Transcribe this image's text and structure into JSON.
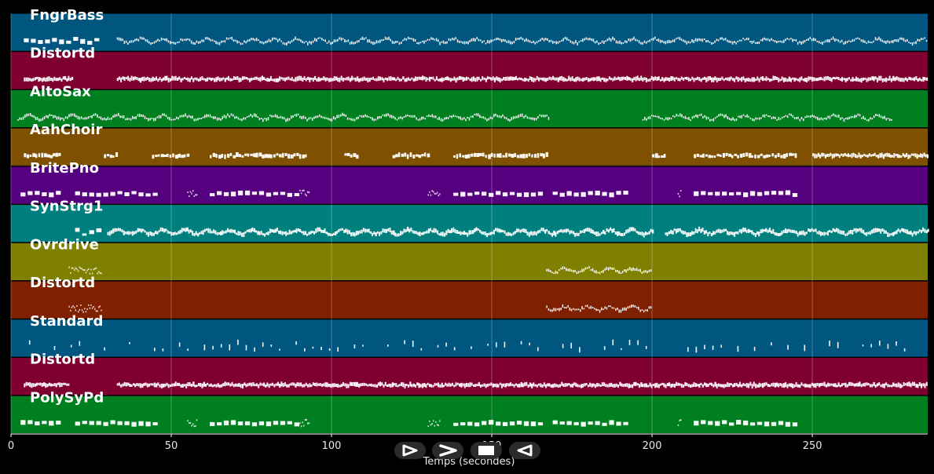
{
  "chart_data": {
    "type": "piano-roll",
    "title": "",
    "xlabel": "Temps (secondes)",
    "ylabel": "",
    "xlim": [
      0,
      286
    ],
    "xticks": [
      0,
      50,
      100,
      150,
      200,
      250
    ],
    "grid": true,
    "tracks": [
      {
        "name": "FngrBass",
        "color": "#00567f",
        "segments": [
          [
            4,
            27,
            "sparse"
          ],
          [
            33,
            286,
            "dense"
          ]
        ],
        "style": "thin",
        "motion": "wave"
      },
      {
        "name": "Distortd",
        "color": "#7f0030",
        "segments": [
          [
            4,
            19,
            "dense"
          ],
          [
            33,
            286,
            "dense"
          ]
        ],
        "style": "thick",
        "motion": "flat"
      },
      {
        "name": "AltoSax",
        "color": "#007f20",
        "segments": [
          [
            2,
            168,
            "dense"
          ],
          [
            197,
            275,
            "dense"
          ]
        ],
        "style": "thin",
        "motion": "wave"
      },
      {
        "name": "AahChoir",
        "color": "#7f5000",
        "segments": [
          [
            4,
            15,
            "medium"
          ],
          [
            29,
            33,
            "medium"
          ],
          [
            44,
            55,
            "medium"
          ],
          [
            62,
            92,
            "medium"
          ],
          [
            104,
            108,
            "medium"
          ],
          [
            119,
            130,
            "medium"
          ],
          [
            138,
            167,
            "medium"
          ],
          [
            200,
            204,
            "medium"
          ],
          [
            213,
            245,
            "medium"
          ],
          [
            250,
            286,
            "dense"
          ]
        ],
        "style": "thick",
        "motion": "flat"
      },
      {
        "name": "BritePno",
        "color": "#55007f",
        "segments": [
          [
            3,
            15,
            "sparse"
          ],
          [
            20,
            46,
            "sparse"
          ],
          [
            55,
            58,
            "cluster"
          ],
          [
            62,
            90,
            "sparse"
          ],
          [
            90,
            93,
            "cluster"
          ],
          [
            130,
            134,
            "cluster"
          ],
          [
            138,
            166,
            "sparse"
          ],
          [
            169,
            193,
            "sparse"
          ],
          [
            208,
            209,
            "cluster"
          ],
          [
            213,
            244,
            "sparse"
          ]
        ],
        "style": "thin",
        "motion": "flat"
      },
      {
        "name": "SynStrg1",
        "color": "#007f7f",
        "segments": [
          [
            20,
            28,
            "sparse"
          ],
          [
            30,
            200,
            "dense"
          ],
          [
            204,
            286,
            "dense"
          ]
        ],
        "style": "thick",
        "motion": "wave"
      },
      {
        "name": "Ovrdrive",
        "color": "#7f7f00",
        "segments": [
          [
            18,
            28,
            "cluster"
          ],
          [
            167,
            200,
            "dense"
          ]
        ],
        "style": "thin",
        "motion": "wave"
      },
      {
        "name": "Distortd",
        "color": "#7f2000",
        "segments": [
          [
            18,
            28,
            "cluster"
          ],
          [
            167,
            200,
            "dense"
          ]
        ],
        "style": "thin",
        "motion": "wave"
      },
      {
        "name": "Standard",
        "color": "#00567f",
        "segments": [
          [
            3,
            280,
            "drum"
          ]
        ],
        "style": "drum",
        "motion": "flat"
      },
      {
        "name": "Distortd",
        "color": "#7f0030",
        "segments": [
          [
            4,
            18,
            "dense"
          ],
          [
            33,
            286,
            "dense"
          ]
        ],
        "style": "thick",
        "motion": "flat"
      },
      {
        "name": "PolySyPd",
        "color": "#007f20",
        "segments": [
          [
            3,
            15,
            "sparse"
          ],
          [
            20,
            46,
            "sparse"
          ],
          [
            55,
            58,
            "cluster"
          ],
          [
            62,
            90,
            "sparse"
          ],
          [
            90,
            93,
            "cluster"
          ],
          [
            130,
            134,
            "cluster"
          ],
          [
            138,
            166,
            "sparse"
          ],
          [
            169,
            193,
            "sparse"
          ],
          [
            208,
            209,
            "cluster"
          ],
          [
            213,
            244,
            "sparse"
          ]
        ],
        "style": "thin",
        "motion": "flat"
      }
    ]
  },
  "controls": [
    {
      "name": "play-from-start-button",
      "icon": "play-outline-icon"
    },
    {
      "name": "forward-button",
      "icon": "chevron-right-icon"
    },
    {
      "name": "stop-button",
      "icon": "stop-square-icon"
    },
    {
      "name": "reverse-button",
      "icon": "play-left-outline-icon"
    }
  ]
}
